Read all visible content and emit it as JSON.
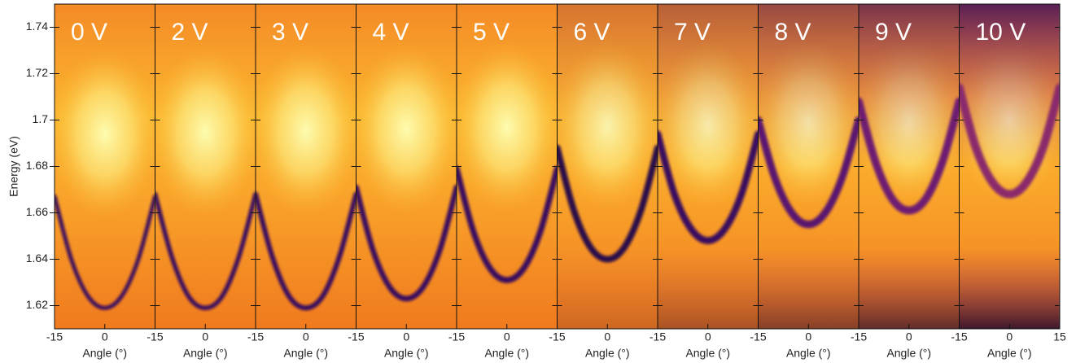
{
  "chart_data": [
    {
      "type": "heatmap",
      "title": "0 V",
      "xlabel": "Angle (°)",
      "ylabel": "Energy (eV)",
      "xlim": [
        -15,
        15
      ],
      "xticks": [
        -15,
        0
      ],
      "ylim": [
        1.61,
        1.75
      ],
      "yticks": [
        1.62,
        1.64,
        1.66,
        1.68,
        1.7,
        1.72,
        1.74
      ],
      "x": [
        -15,
        -10,
        -5,
        0,
        5,
        10,
        15
      ],
      "values": [
        1.667,
        1.64,
        1.624,
        1.619,
        1.624,
        1.64,
        1.667
      ],
      "color": "#3a0a5e"
    },
    {
      "type": "heatmap",
      "title": "2 V",
      "xlabel": "Angle (°)",
      "xlim": [
        -15,
        15
      ],
      "xticks": [
        -15,
        0
      ],
      "ylim": [
        1.61,
        1.75
      ],
      "x": [
        -15,
        -10,
        -5,
        0,
        5,
        10,
        15
      ],
      "values": [
        1.668,
        1.641,
        1.624,
        1.619,
        1.624,
        1.641,
        1.668
      ],
      "color": "#3a0a5e"
    },
    {
      "type": "heatmap",
      "title": "3 V",
      "xlabel": "Angle (°)",
      "xlim": [
        -15,
        15
      ],
      "xticks": [
        -15,
        0
      ],
      "ylim": [
        1.61,
        1.75
      ],
      "x": [
        -15,
        -10,
        -5,
        0,
        5,
        10,
        15
      ],
      "values": [
        1.668,
        1.641,
        1.624,
        1.619,
        1.624,
        1.641,
        1.668
      ],
      "color": "#3a0a5e"
    },
    {
      "type": "heatmap",
      "title": "4 V",
      "xlabel": "Angle (°)",
      "xlim": [
        -15,
        15
      ],
      "xticks": [
        -15,
        0
      ],
      "ylim": [
        1.61,
        1.75
      ],
      "x": [
        -15,
        -10,
        -5,
        0,
        5,
        10,
        15
      ],
      "values": [
        1.671,
        1.644,
        1.628,
        1.623,
        1.628,
        1.644,
        1.671
      ],
      "color": "#3a0a5e"
    },
    {
      "type": "heatmap",
      "title": "5 V",
      "xlabel": "Angle (°)",
      "xlim": [
        -15,
        15
      ],
      "xticks": [
        -15,
        0
      ],
      "ylim": [
        1.61,
        1.75
      ],
      "x": [
        -15,
        -10,
        -5,
        0,
        5,
        10,
        15
      ],
      "values": [
        1.679,
        1.652,
        1.636,
        1.631,
        1.636,
        1.652,
        1.679
      ],
      "color": "#3a0a5e"
    },
    {
      "type": "heatmap",
      "title": "6 V",
      "xlabel": "Angle (°)",
      "xlim": [
        -15,
        15
      ],
      "xticks": [
        -15,
        0
      ],
      "ylim": [
        1.61,
        1.75
      ],
      "x": [
        -15,
        -10,
        -5,
        0,
        5,
        10,
        15
      ],
      "values": [
        1.688,
        1.661,
        1.645,
        1.64,
        1.645,
        1.661,
        1.688
      ],
      "color": "#2a0848"
    },
    {
      "type": "heatmap",
      "title": "7 V",
      "xlabel": "Angle (°)",
      "xlim": [
        -15,
        15
      ],
      "xticks": [
        -15,
        0
      ],
      "ylim": [
        1.61,
        1.75
      ],
      "x": [
        -15,
        -10,
        -5,
        0,
        5,
        10,
        15
      ],
      "values": [
        1.694,
        1.668,
        1.653,
        1.648,
        1.653,
        1.668,
        1.694
      ],
      "color": "#3a0a5e"
    },
    {
      "type": "heatmap",
      "title": "8 V",
      "xlabel": "Angle (°)",
      "xlim": [
        -15,
        15
      ],
      "xticks": [
        -15,
        0
      ],
      "ylim": [
        1.61,
        1.75
      ],
      "x": [
        -15,
        -10,
        -5,
        0,
        5,
        10,
        15
      ],
      "values": [
        1.7,
        1.675,
        1.66,
        1.655,
        1.66,
        1.675,
        1.7
      ],
      "color": "#5a1470"
    },
    {
      "type": "heatmap",
      "title": "9 V",
      "xlabel": "Angle (°)",
      "xlim": [
        -15,
        15
      ],
      "xticks": [
        -15,
        0
      ],
      "ylim": [
        1.61,
        1.75
      ],
      "x": [
        -15,
        -10,
        -5,
        0,
        5,
        10,
        15
      ],
      "values": [
        1.708,
        1.682,
        1.666,
        1.661,
        1.666,
        1.682,
        1.708
      ],
      "color": "#6e1c72"
    },
    {
      "type": "heatmap",
      "title": "10 V",
      "xlabel": "Angle (°)",
      "xlim": [
        -15,
        15
      ],
      "xticks": [
        -15,
        0,
        15
      ],
      "ylim": [
        1.61,
        1.75
      ],
      "x": [
        -15,
        -10,
        -5,
        0,
        5,
        10,
        15
      ],
      "values": [
        1.714,
        1.688,
        1.673,
        1.668,
        1.673,
        1.688,
        1.714
      ],
      "color": "#8a2a6c"
    }
  ]
}
